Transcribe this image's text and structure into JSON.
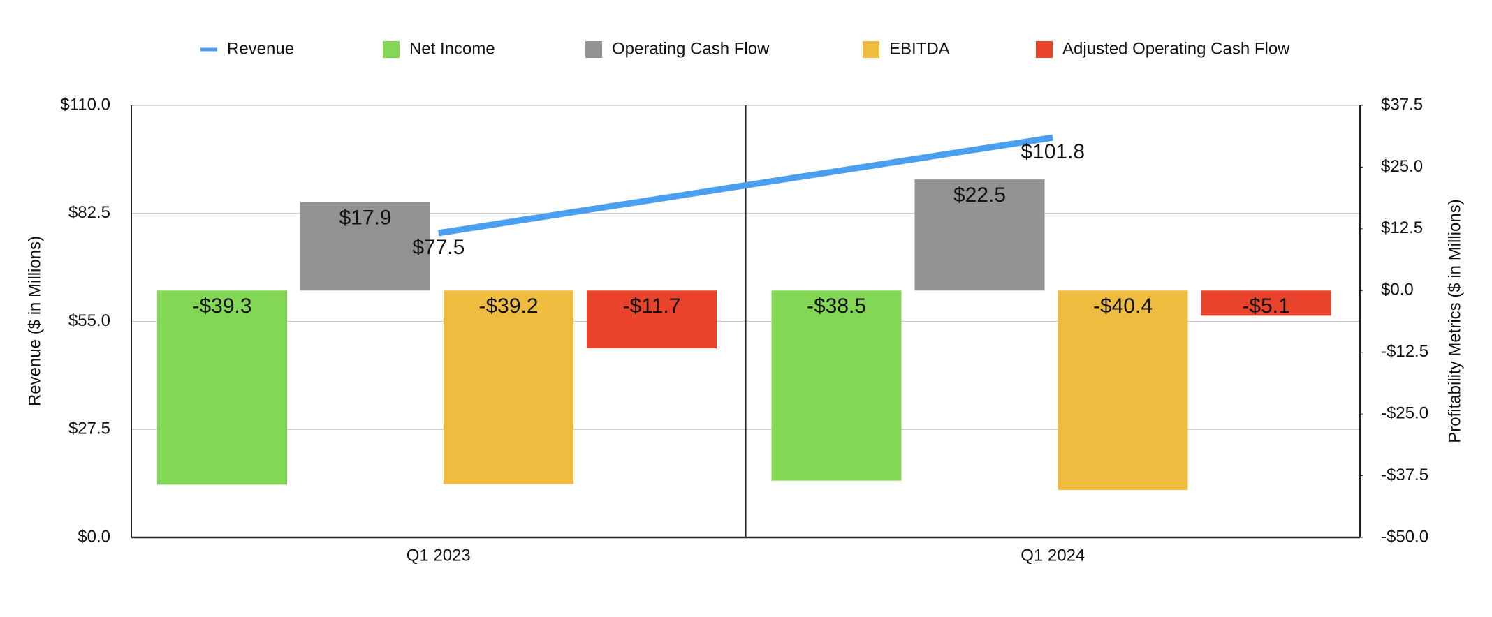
{
  "chart_data": {
    "type": "bar",
    "categories": [
      "Q1 2023",
      "Q1 2024"
    ],
    "ylabel": "Revenue ($ in Millions)",
    "y2label": "Profitability Metrics ($ in Millions)",
    "ylim": [
      0,
      110
    ],
    "yticks": [
      {
        "value": 0,
        "label": "$0.0"
      },
      {
        "value": 27.5,
        "label": "$27.5"
      },
      {
        "value": 55,
        "label": "$55.0"
      },
      {
        "value": 82.5,
        "label": "$82.5"
      },
      {
        "value": 110,
        "label": "$110.0"
      }
    ],
    "y2lim": [
      -50,
      37.5
    ],
    "y2ticks": [
      {
        "value": -50,
        "label": "-$50.0"
      },
      {
        "value": -37.5,
        "label": "-$37.5"
      },
      {
        "value": -25,
        "label": "-$25.0"
      },
      {
        "value": -12.5,
        "label": "-$12.5"
      },
      {
        "value": 0,
        "label": "$0.0"
      },
      {
        "value": 12.5,
        "label": "$12.5"
      },
      {
        "value": 25,
        "label": "$25.0"
      },
      {
        "value": 37.5,
        "label": "$37.5"
      }
    ],
    "grid": true,
    "legend": "top",
    "series": [
      {
        "name": "Revenue",
        "type": "line",
        "color": "#4a9ff0",
        "values": [
          77.5,
          101.8
        ],
        "value_labels": [
          "$77.5",
          "$101.8"
        ]
      },
      {
        "name": "Net Income",
        "axis": "y2",
        "color": "#82d855",
        "values": [
          -39.3,
          -38.5
        ],
        "value_labels": [
          "-$39.3",
          "-$38.5"
        ]
      },
      {
        "name": "Operating Cash Flow",
        "axis": "y2",
        "color": "#939393",
        "values": [
          17.9,
          22.5
        ],
        "value_labels": [
          "$17.9",
          "$22.5"
        ]
      },
      {
        "name": "EBITDA",
        "axis": "y2",
        "color": "#efbc40",
        "values": [
          -39.2,
          -40.4
        ],
        "value_labels": [
          "-$39.2",
          "-$40.4"
        ]
      },
      {
        "name": "Adjusted Operating Cash Flow",
        "axis": "y2",
        "color": "#e9432b",
        "values": [
          -11.7,
          -5.1
        ],
        "value_labels": [
          "-$11.7",
          "-$5.1"
        ]
      }
    ]
  }
}
